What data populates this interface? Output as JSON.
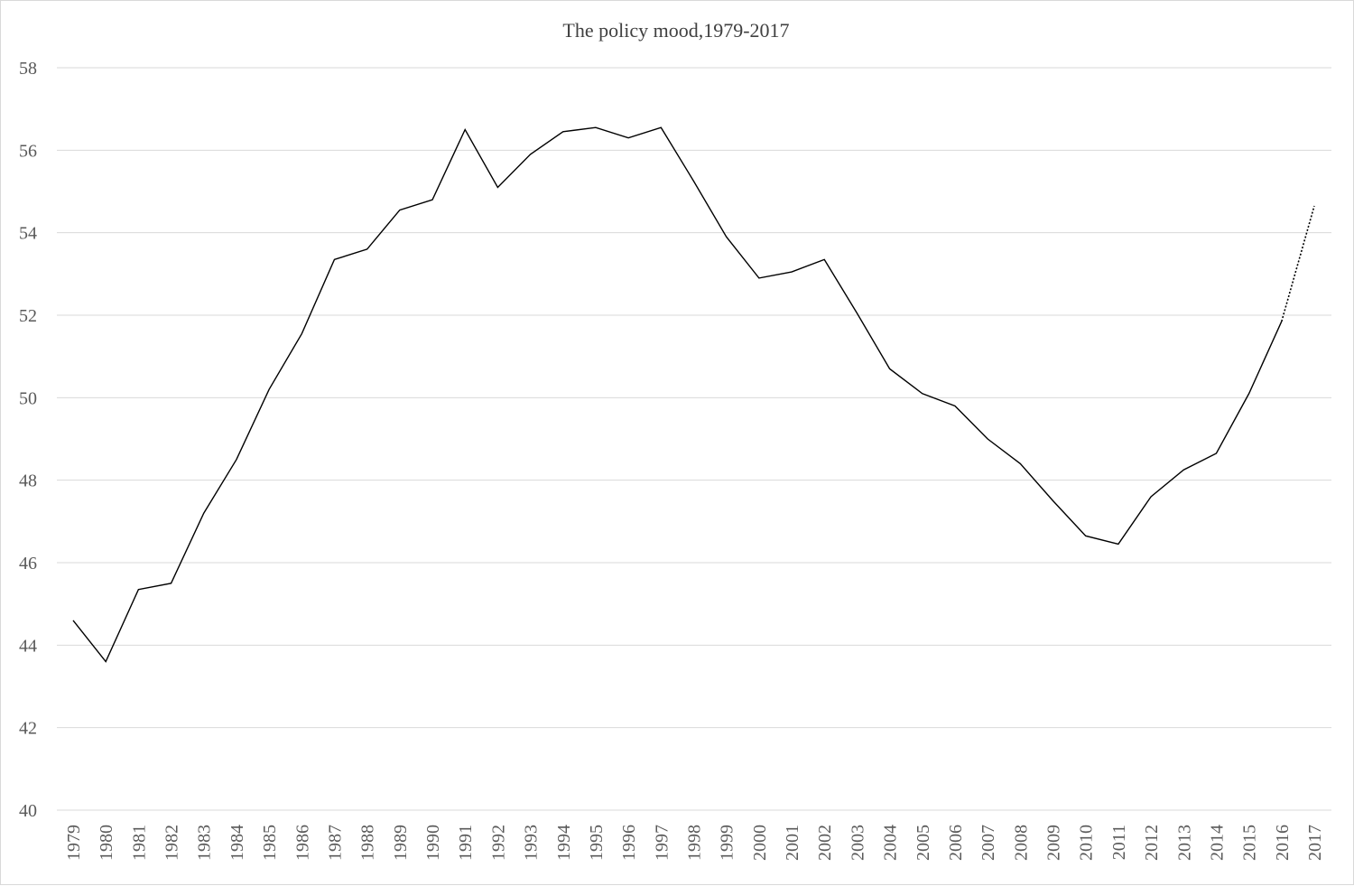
{
  "chart_data": {
    "type": "line",
    "title": "The policy mood,1979-2017",
    "xlabel": "",
    "ylabel": "",
    "ylim": [
      40,
      58
    ],
    "yticks": [
      40,
      42,
      44,
      46,
      48,
      50,
      52,
      54,
      56,
      58
    ],
    "grid": true,
    "legend": "none",
    "x": [
      "1979",
      "1980",
      "1981",
      "1982",
      "1983",
      "1984",
      "1985",
      "1986",
      "1987",
      "1988",
      "1989",
      "1990",
      "1991",
      "1992",
      "1993",
      "1994",
      "1995",
      "1996",
      "1997",
      "1998",
      "1999",
      "2000",
      "2001",
      "2002",
      "2003",
      "2004",
      "2005",
      "2006",
      "2007",
      "2008",
      "2009",
      "2010",
      "2011",
      "2012",
      "2013",
      "2014",
      "2015",
      "2016",
      "2017"
    ],
    "series": [
      {
        "values": [
          44.6,
          43.6,
          45.35,
          45.5,
          47.2,
          48.5,
          50.2,
          51.55,
          53.35,
          53.6,
          54.55,
          54.8,
          56.5,
          55.1,
          55.9,
          56.45,
          56.55,
          56.3,
          56.55,
          55.25,
          53.9,
          52.9,
          53.05,
          53.35,
          52.05,
          50.7,
          50.1,
          49.8,
          49.0,
          48.4,
          47.5,
          46.65,
          46.45,
          47.6,
          48.25,
          48.65,
          50.1,
          51.85,
          54.65
        ],
        "dotted_from_index": 37,
        "color": "#000000"
      }
    ]
  }
}
